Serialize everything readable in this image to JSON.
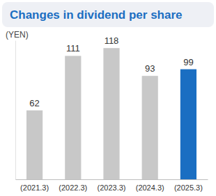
{
  "chart_data": {
    "type": "bar",
    "title": "Changes in dividend per share",
    "ylabel": "(YEN)",
    "categories": [
      "(2021.3)",
      "(2022.3)",
      "(2023.3)",
      "(2024.3)",
      "(2025.3)"
    ],
    "values": [
      62,
      111,
      118,
      93,
      99
    ],
    "colors": [
      "#c8c8c8",
      "#c8c8c8",
      "#c8c8c8",
      "#c8c8c8",
      "#1a6ec2"
    ],
    "ylim": [
      0,
      125
    ],
    "yticks": [],
    "tick_labels": "x",
    "data_labels": true,
    "grid": false
  }
}
